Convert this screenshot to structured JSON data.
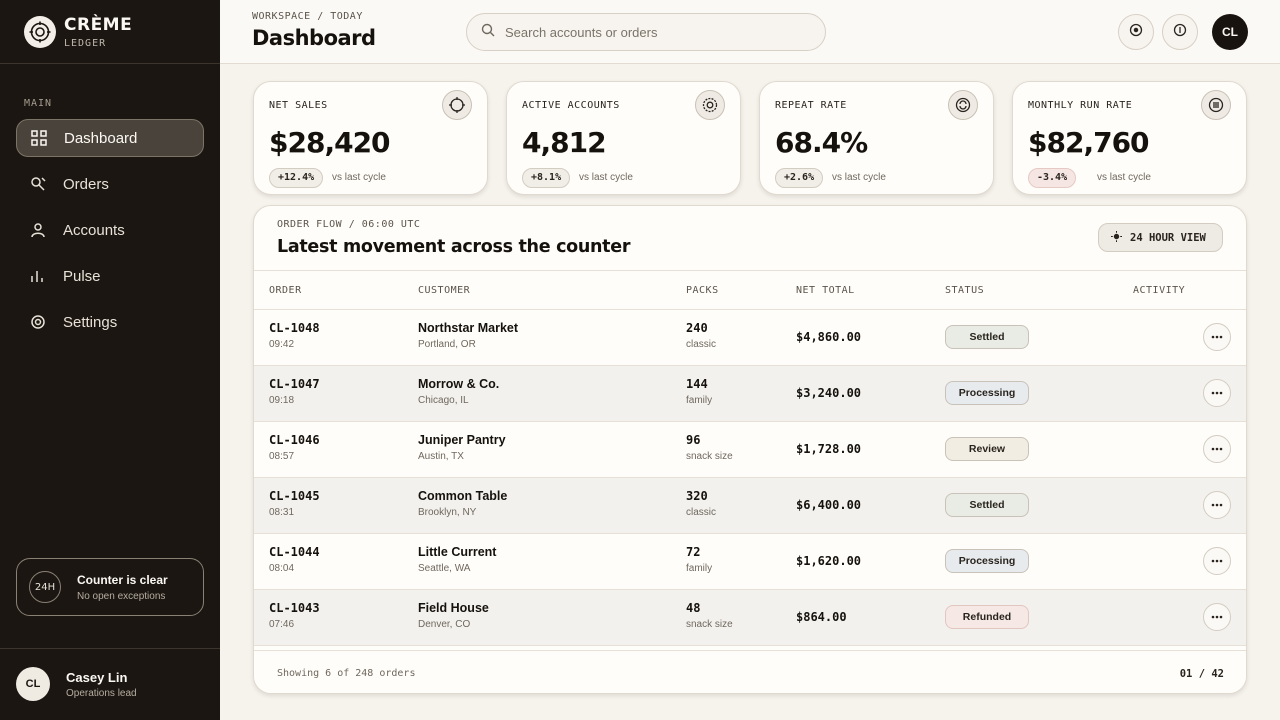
{
  "brand": {
    "name": "CRÈME",
    "sub": "LEDGER"
  },
  "sidebar": {
    "section": "MAIN",
    "items": [
      {
        "label": "Dashboard",
        "icon": "grid-icon",
        "active": true
      },
      {
        "label": "Orders",
        "icon": "orders-icon",
        "active": false
      },
      {
        "label": "Accounts",
        "icon": "user-icon",
        "active": false
      },
      {
        "label": "Pulse",
        "icon": "bars-icon",
        "active": false
      },
      {
        "label": "Settings",
        "icon": "gear-icon",
        "active": false
      }
    ],
    "status": {
      "badge": "24H",
      "title": "Counter is clear",
      "sub": "No open exceptions"
    },
    "user": {
      "initials": "CL",
      "name": "Casey Lin",
      "role": "Operations lead"
    }
  },
  "header": {
    "breadcrumb": "WORKSPACE / TODAY",
    "title": "Dashboard",
    "search_placeholder": "Search accounts or orders",
    "avatar": "CL"
  },
  "kpis": [
    {
      "label": "NET SALES",
      "value": "$28,420",
      "delta": "+12.4%",
      "vs": "vs last cycle",
      "negative": false,
      "icon": "target-icon"
    },
    {
      "label": "ACTIVE ACCOUNTS",
      "value": "4,812",
      "delta": "+8.1%",
      "vs": "vs last cycle",
      "negative": false,
      "icon": "gear-icon"
    },
    {
      "label": "REPEAT RATE",
      "value": "68.4%",
      "delta": "+2.6%",
      "vs": "vs last cycle",
      "negative": false,
      "icon": "repeat-icon"
    },
    {
      "label": "MONTHLY RUN RATE",
      "value": "$82,760",
      "delta": "-3.4%",
      "vs": "vs last cycle",
      "negative": true,
      "icon": "list-icon"
    }
  ],
  "orders": {
    "eyebrow": "ORDER FLOW / 06:00 UTC",
    "title": "Latest movement across the counter",
    "view_button": "24 HOUR VIEW",
    "columns": [
      "ORDER",
      "CUSTOMER",
      "PACKS",
      "NET TOTAL",
      "STATUS",
      "ACTIVITY"
    ],
    "rows": [
      {
        "id": "CL-1048",
        "time": "09:42",
        "customer": "Northstar Market",
        "location": "Portland, OR",
        "packs": "240",
        "kind": "classic",
        "total": "$4,860.00",
        "status": "Settled"
      },
      {
        "id": "CL-1047",
        "time": "09:18",
        "customer": "Morrow & Co.",
        "location": "Chicago, IL",
        "packs": "144",
        "kind": "family",
        "total": "$3,240.00",
        "status": "Processing"
      },
      {
        "id": "CL-1046",
        "time": "08:57",
        "customer": "Juniper Pantry",
        "location": "Austin, TX",
        "packs": "96",
        "kind": "snack size",
        "total": "$1,728.00",
        "status": "Review"
      },
      {
        "id": "CL-1045",
        "time": "08:31",
        "customer": "Common Table",
        "location": "Brooklyn, NY",
        "packs": "320",
        "kind": "classic",
        "total": "$6,400.00",
        "status": "Settled"
      },
      {
        "id": "CL-1044",
        "time": "08:04",
        "customer": "Little Current",
        "location": "Seattle, WA",
        "packs": "72",
        "kind": "family",
        "total": "$1,620.00",
        "status": "Processing"
      },
      {
        "id": "CL-1043",
        "time": "07:46",
        "customer": "Field House",
        "location": "Denver, CO",
        "packs": "48",
        "kind": "snack size",
        "total": "$864.00",
        "status": "Refunded"
      }
    ],
    "footer_left": "Showing 6 of 248 orders",
    "footer_right": "01 / 42"
  },
  "status_colors": {
    "Settled": "#e9ece4",
    "Processing": "#e7ebee",
    "Review": "#f2ede3",
    "Refunded": "#f6e8e5"
  }
}
